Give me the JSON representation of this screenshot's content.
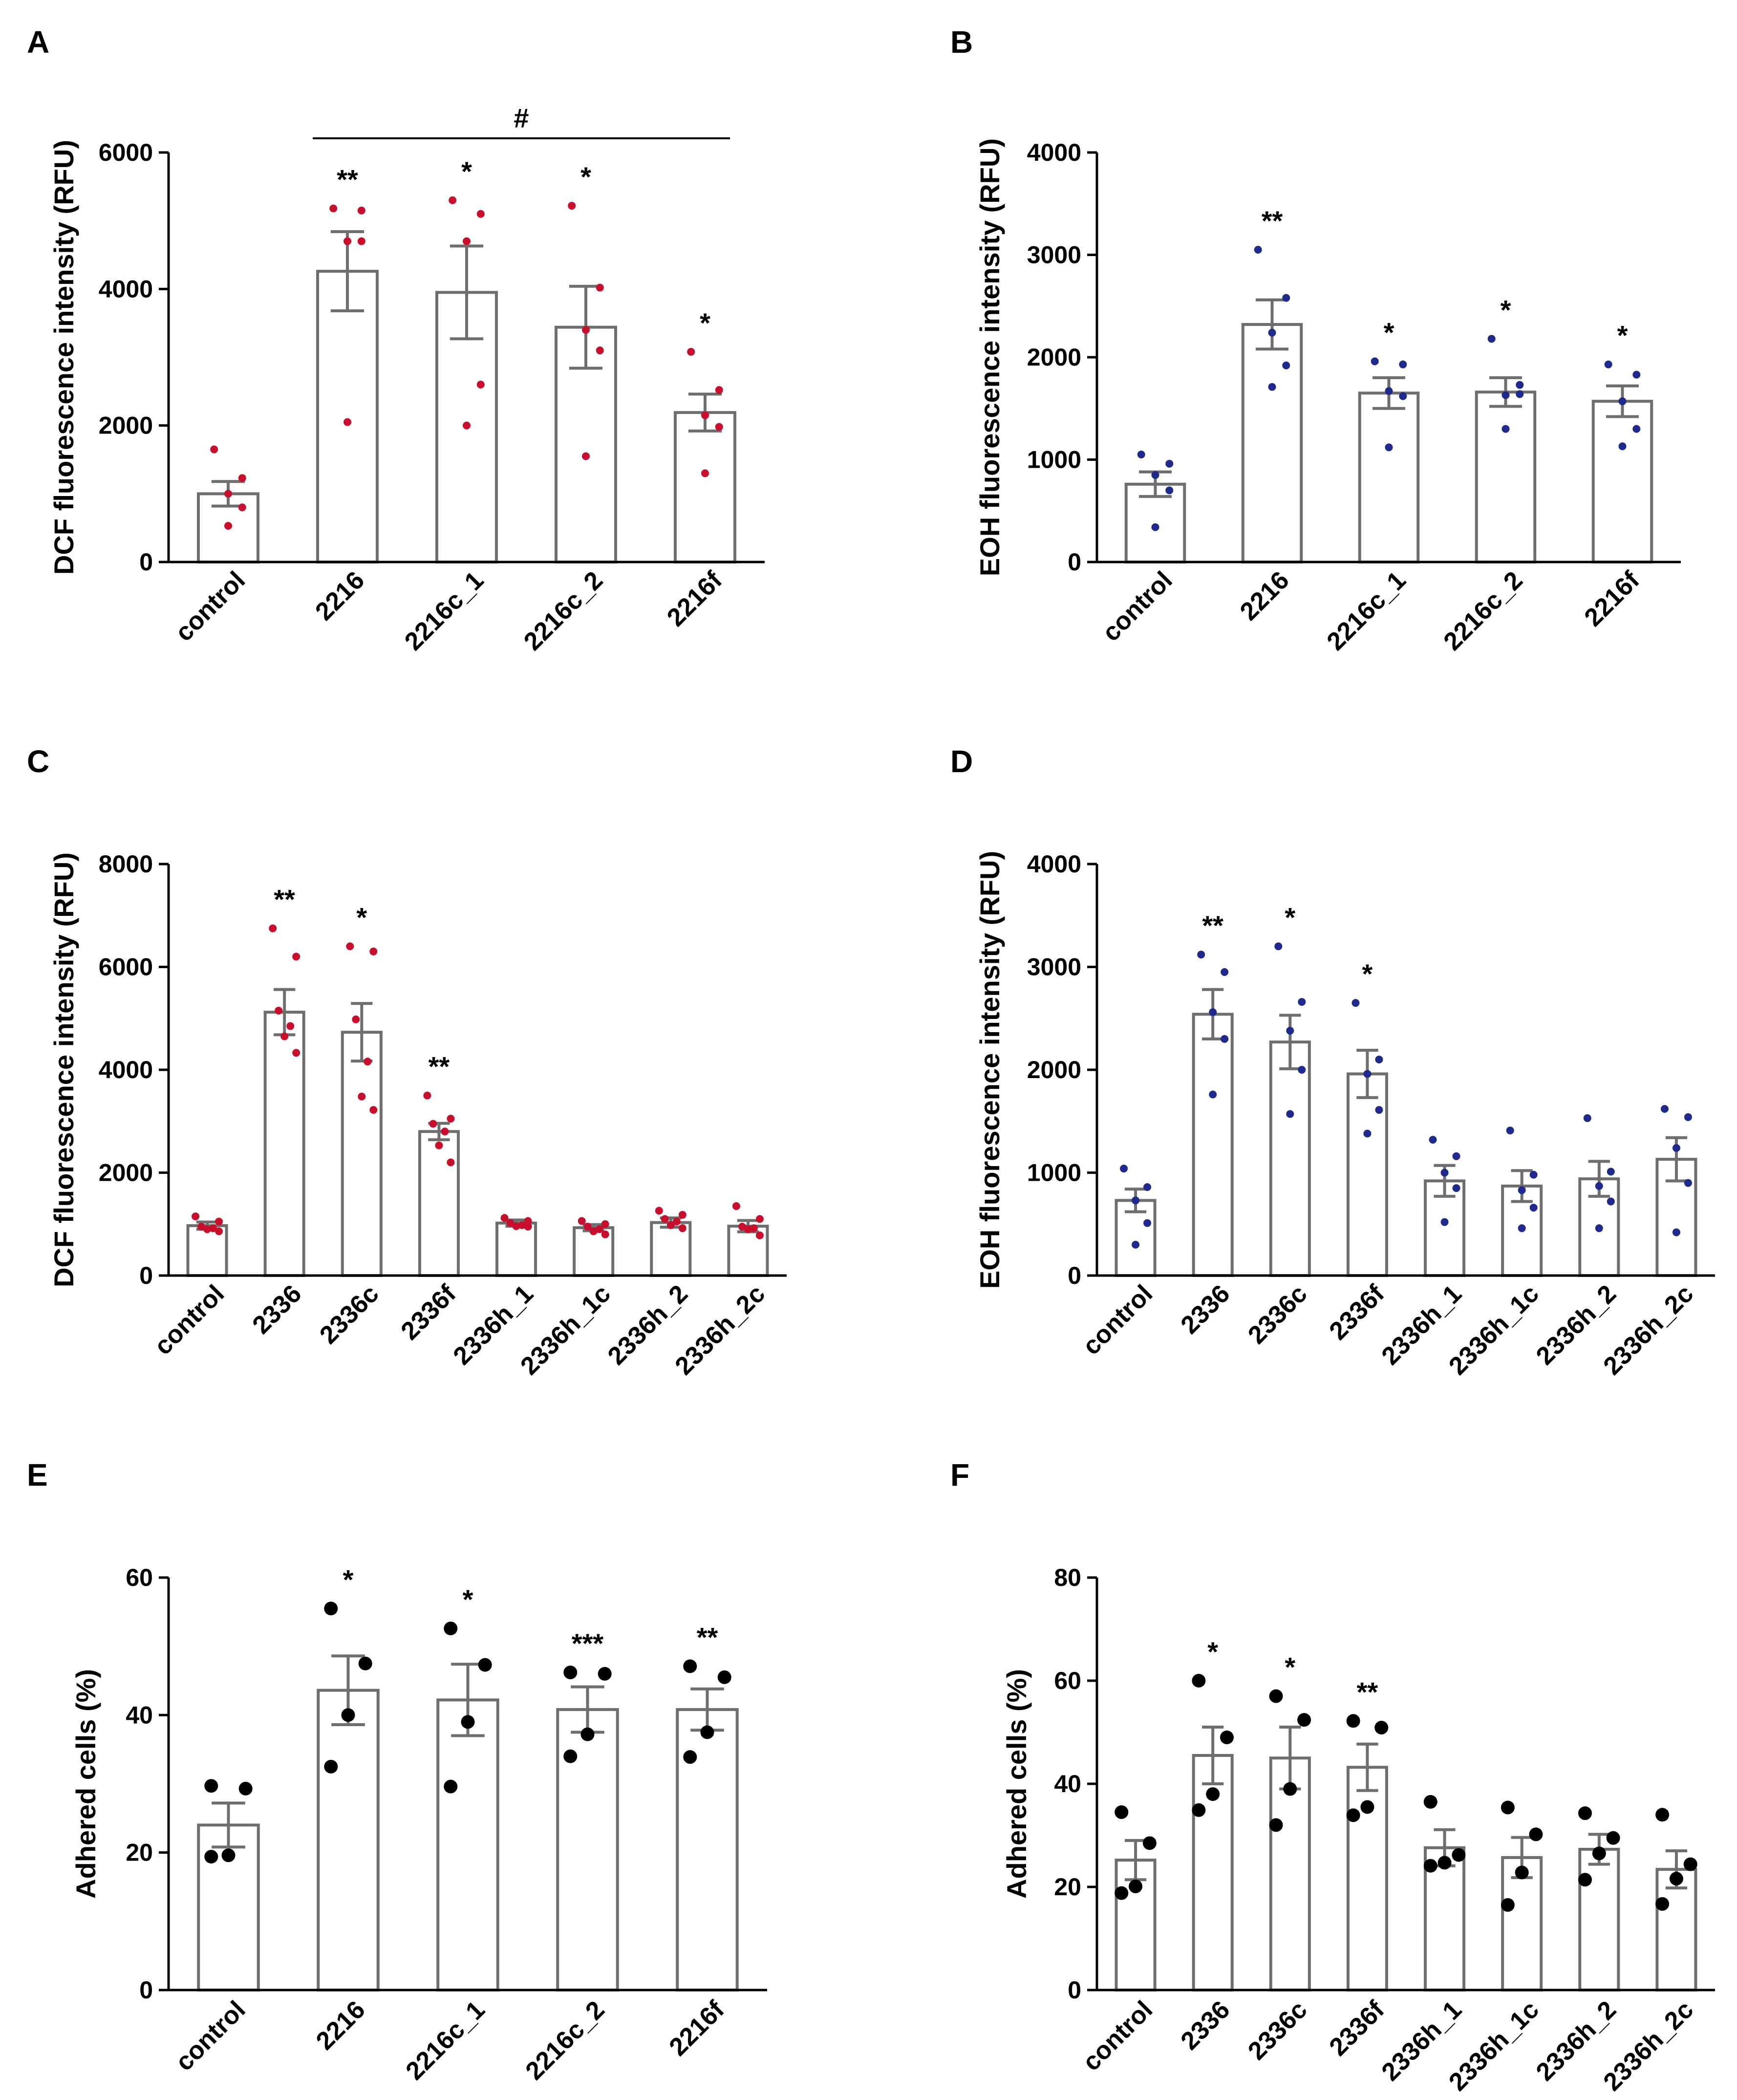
{
  "chart_data": [
    {
      "id": "A",
      "panel_label": "A",
      "type": "bar",
      "ylabel": "DCF fluorescence intensity (RFU)",
      "ylim": [
        0,
        6000
      ],
      "yticks": [
        0,
        2000,
        4000,
        6000
      ],
      "categories": [
        "control",
        "2216",
        "2216c_1",
        "2216c_2",
        "2216f"
      ],
      "values": [
        1000,
        4260,
        3950,
        3440,
        2190
      ],
      "errors": [
        180,
        580,
        680,
        600,
        270
      ],
      "points": [
        [
          1650,
          1230,
          1000,
          800,
          530
        ],
        [
          5180,
          5150,
          4700,
          4700,
          2050
        ],
        [
          5300,
          5100,
          4700,
          2600,
          2000
        ],
        [
          5220,
          4020,
          3400,
          3100,
          1550
        ],
        [
          3080,
          2520,
          2150,
          1980,
          1300
        ]
      ],
      "point_color": "#c8102e",
      "significance": [
        "",
        "**",
        "*",
        "*",
        "*"
      ],
      "bracket": {
        "from": 1,
        "to": 4,
        "label": "#"
      }
    },
    {
      "id": "B",
      "panel_label": "B",
      "type": "bar",
      "ylabel": "EOH fluorescence intensity (RFU)",
      "ylim": [
        0,
        4000
      ],
      "yticks": [
        0,
        1000,
        2000,
        3000,
        4000
      ],
      "categories": [
        "control",
        "2216",
        "2216c_1",
        "2216c_2",
        "2216f"
      ],
      "values": [
        760,
        2320,
        1650,
        1660,
        1570
      ],
      "errors": [
        120,
        240,
        150,
        140,
        150
      ],
      "points": [
        [
          1050,
          960,
          850,
          700,
          340
        ],
        [
          3050,
          2580,
          2240,
          1920,
          1710
        ],
        [
          1960,
          1930,
          1670,
          1620,
          1120
        ],
        [
          2180,
          1730,
          1630,
          1640,
          1300
        ],
        [
          1930,
          1830,
          1570,
          1300,
          1130
        ]
      ],
      "point_color": "#1f2a8c",
      "significance": [
        "",
        "**",
        "*",
        "*",
        "*"
      ]
    },
    {
      "id": "C",
      "panel_label": "C",
      "type": "bar",
      "ylabel": "DCF fluorescence intensity (RFU)",
      "ylim": [
        0,
        8000
      ],
      "yticks": [
        0,
        2000,
        4000,
        6000,
        8000
      ],
      "categories": [
        "control",
        "2336",
        "2336c",
        "2336f",
        "2336h_1",
        "2336h_1c",
        "2336h_2",
        "2336h_2c"
      ],
      "values": [
        970,
        5120,
        4730,
        2800,
        1020,
        930,
        1030,
        960
      ],
      "errors": [
        70,
        440,
        560,
        160,
        60,
        60,
        90,
        110
      ],
      "points": [
        [
          1150,
          1050,
          950,
          920,
          900,
          860
        ],
        [
          6750,
          6200,
          5150,
          4850,
          4650,
          4330
        ],
        [
          6400,
          6300,
          4980,
          4160,
          3480,
          3220
        ],
        [
          3500,
          3050,
          2950,
          2800,
          2530,
          2200
        ],
        [
          1120,
          1060,
          1020,
          980,
          960,
          950
        ],
        [
          1060,
          1000,
          950,
          900,
          860,
          800
        ],
        [
          1260,
          1180,
          1100,
          1050,
          980,
          920
        ],
        [
          1350,
          1100,
          950,
          920,
          900,
          780
        ]
      ],
      "point_color": "#c8102e",
      "significance": [
        "",
        "**",
        "*",
        "**",
        "",
        "",
        "",
        ""
      ]
    },
    {
      "id": "D",
      "panel_label": "D",
      "type": "bar",
      "ylabel": "EOH fluorescence intensity (RFU)",
      "ylim": [
        0,
        4000
      ],
      "yticks": [
        0,
        1000,
        2000,
        3000,
        4000
      ],
      "categories": [
        "control",
        "2336",
        "2336c",
        "2336f",
        "2336h_1",
        "2336h_1c",
        "2336h_2",
        "2336h_2c"
      ],
      "values": [
        730,
        2540,
        2270,
        1960,
        920,
        870,
        940,
        1130
      ],
      "errors": [
        110,
        240,
        260,
        230,
        150,
        150,
        170,
        210
      ],
      "points": [
        [
          1040,
          860,
          730,
          510,
          300
        ],
        [
          3120,
          2950,
          2560,
          2300,
          1760
        ],
        [
          3200,
          2660,
          2380,
          2000,
          1570
        ],
        [
          2650,
          2100,
          1960,
          1610,
          1380
        ],
        [
          1320,
          1160,
          1000,
          850,
          520
        ],
        [
          1410,
          980,
          830,
          660,
          460
        ],
        [
          1530,
          1010,
          870,
          720,
          460
        ],
        [
          1620,
          1540,
          1240,
          900,
          420
        ]
      ],
      "point_color": "#1f2a8c",
      "significance": [
        "",
        "**",
        "*",
        "*",
        "",
        "",
        "",
        ""
      ]
    },
    {
      "id": "E",
      "panel_label": "E",
      "type": "bar",
      "ylabel": "Adhered cells (%)",
      "ylim": [
        0,
        60
      ],
      "yticks": [
        0,
        20,
        40,
        60
      ],
      "categories": [
        "control",
        "2216",
        "2216c_1",
        "2216c_2",
        "2216f"
      ],
      "values": [
        24,
        43.6,
        42.2,
        40.8,
        40.8
      ],
      "errors": [
        3.2,
        5.0,
        5.2,
        3.3,
        3.0
      ],
      "points": [
        [
          29.7,
          29.3,
          19.6,
          19.4
        ],
        [
          55.5,
          47.5,
          40,
          32.5
        ],
        [
          52.6,
          47.3,
          39,
          29.6
        ],
        [
          46.2,
          46,
          37.2,
          34
        ],
        [
          47.1,
          45.5,
          37.5,
          33.9
        ]
      ],
      "point_color": "#000000",
      "significance": [
        "",
        "*",
        "*",
        "***",
        "**"
      ]
    },
    {
      "id": "F",
      "panel_label": "F",
      "type": "bar",
      "ylabel": "Adhered cells (%)",
      "ylim": [
        0,
        80
      ],
      "yticks": [
        0,
        20,
        40,
        60,
        80
      ],
      "categories": [
        "control",
        "2336",
        "2336c",
        "2336f",
        "2336h_1",
        "2336h_1c",
        "2336h_2",
        "2336h_2c"
      ],
      "values": [
        25.2,
        45.5,
        45.0,
        43.2,
        27.6,
        25.7,
        27.3,
        23.4
      ],
      "errors": [
        3.8,
        5.5,
        6.0,
        4.5,
        3.5,
        3.9,
        2.9,
        3.6
      ],
      "points": [
        [
          34.5,
          28.5,
          20.1,
          18.8
        ],
        [
          60,
          49,
          38,
          34.9
        ],
        [
          57,
          52.4,
          39,
          32
        ],
        [
          52.2,
          50.9,
          35.5,
          33.9
        ],
        [
          36.5,
          26.2,
          24.7,
          24.1
        ],
        [
          35.4,
          30.2,
          22.8,
          16.5
        ],
        [
          34.3,
          29.5,
          26.5,
          21.4
        ],
        [
          34,
          24.4,
          21.6,
          16.7
        ]
      ],
      "point_color": "#000000",
      "significance": [
        "",
        "*",
        "*",
        "**",
        "",
        "",
        "",
        ""
      ]
    }
  ]
}
